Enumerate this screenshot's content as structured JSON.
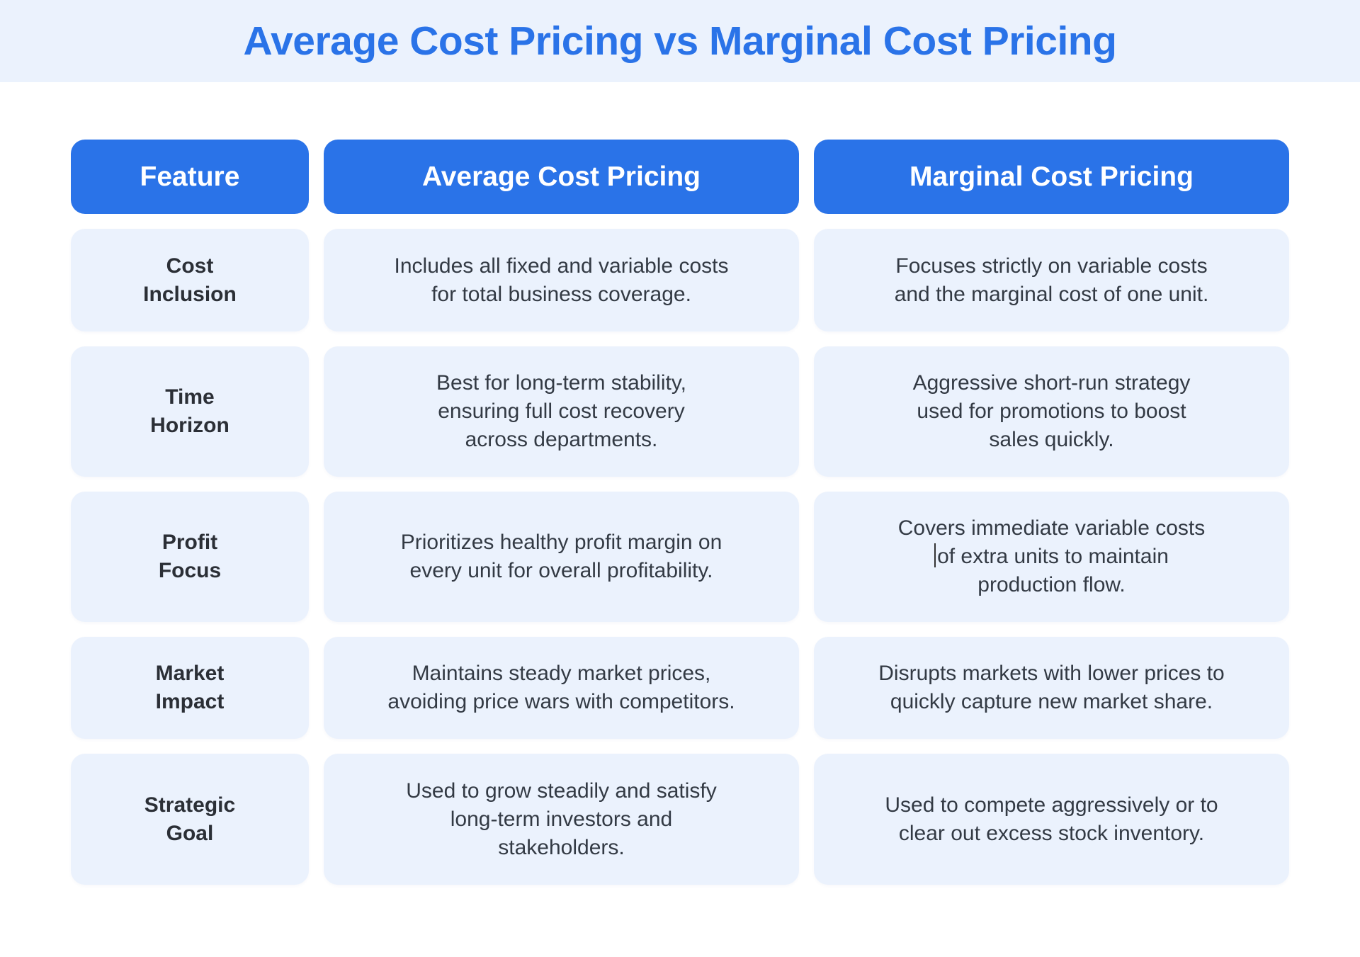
{
  "title": "Average Cost Pricing vs Marginal Cost Pricing",
  "colors": {
    "accent": "#2a73e8",
    "cell_bg": "#ebf2fd",
    "text": "#333a44"
  },
  "headers": [
    "Feature",
    "Average Cost Pricing",
    "Marginal Cost Pricing"
  ],
  "rows": [
    {
      "feature": [
        "Cost",
        "Inclusion"
      ],
      "average": [
        "Includes all fixed and variable costs",
        "for total business coverage."
      ],
      "marginal": [
        "Focuses strictly on variable costs",
        "and the marginal cost of one unit."
      ]
    },
    {
      "feature": [
        "Time",
        "Horizon"
      ],
      "average": [
        "Best for long-term stability,",
        "ensuring full cost recovery",
        "across departments."
      ],
      "marginal": [
        "Aggressive short-run strategy",
        "used for promotions to boost",
        "sales quickly."
      ]
    },
    {
      "feature": [
        "Profit",
        "Focus"
      ],
      "average": [
        "Prioritizes healthy profit margin on",
        "every unit for overall profitability."
      ],
      "marginal": [
        "Covers immediate variable costs",
        "of extra units to maintain",
        "production flow."
      ]
    },
    {
      "feature": [
        "Market",
        "Impact"
      ],
      "average": [
        "Maintains steady market prices,",
        "avoiding price wars with competitors."
      ],
      "marginal": [
        "Disrupts markets with lower prices to",
        "quickly capture new market share."
      ]
    },
    {
      "feature": [
        "Strategic",
        "Goal"
      ],
      "average": [
        "Used to grow steadily and satisfy",
        "long-term investors and",
        "stakeholders."
      ],
      "marginal": [
        "Used to compete aggressively or to",
        "clear out excess stock inventory."
      ]
    }
  ]
}
